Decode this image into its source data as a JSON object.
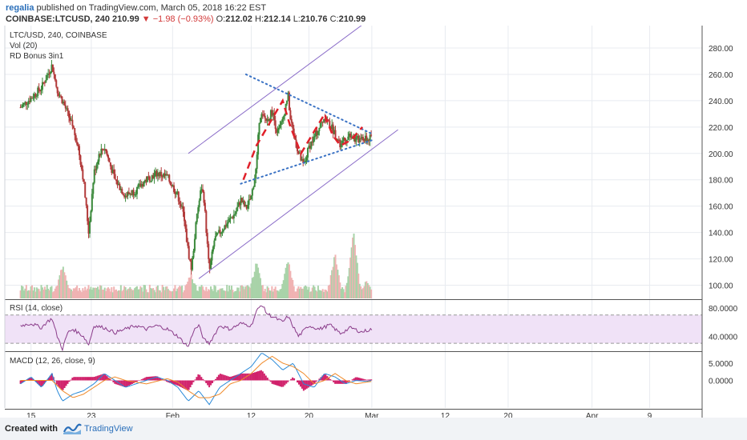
{
  "header": {
    "author": "regalia",
    "published": "published on TradingView.com, March 05, 2018 16:22 EST",
    "symbol": "COINBASE:LTCUSD, 240",
    "last": "210.99",
    "change": "−1.98 (−0.93%)",
    "o_label": "O:",
    "o_value": "212.02",
    "h_label": "H:",
    "h_value": "212.14",
    "l_label": "L:",
    "l_value": "210.76",
    "c_label": "C:",
    "c_value": "210.99"
  },
  "footer": {
    "created": "Created with",
    "brand": "TradingView"
  },
  "colors": {
    "up": "#3c8a3c",
    "down": "#b23a3a",
    "vol_up": "#a9d3a9",
    "vol_down": "#f0b3b3",
    "channel": "#8a6cc8",
    "triangle": "#3a72c4",
    "zigzag": "#e0202a",
    "rsi": "#8a3c8a",
    "rsi_band": "#f0e2f7",
    "macd_line": "#2a8ad8",
    "macd_signal": "#f08a2a",
    "macd_hist": "#d0206a"
  },
  "chart_data": {
    "type": "candlestick",
    "price_pane": {
      "legend": [
        "LTC/USD, 240, COINBASE",
        "Vol (20)",
        "RD Bonus 3in1"
      ],
      "yticks": [
        "280.00",
        "260.00",
        "240.00",
        "220.00",
        "200.00",
        "180.00",
        "160.00",
        "140.00",
        "120.00",
        "100.00"
      ],
      "ytick_values": [
        280,
        260,
        240,
        220,
        200,
        180,
        160,
        140,
        120,
        100
      ],
      "ylim": [
        90,
        297
      ],
      "anchors": [
        {
          "t": 0,
          "p": 235
        },
        {
          "t": 2,
          "p": 242
        },
        {
          "t": 4,
          "p": 250
        },
        {
          "t": 6,
          "p": 267
        },
        {
          "t": 7,
          "p": 248
        },
        {
          "t": 8,
          "p": 240
        },
        {
          "t": 10,
          "p": 220
        },
        {
          "t": 11,
          "p": 205
        },
        {
          "t": 12,
          "p": 180
        },
        {
          "t": 13,
          "p": 140
        },
        {
          "t": 14,
          "p": 185
        },
        {
          "t": 15,
          "p": 200
        },
        {
          "t": 16,
          "p": 205
        },
        {
          "t": 18,
          "p": 180
        },
        {
          "t": 20,
          "p": 168
        },
        {
          "t": 22,
          "p": 172
        },
        {
          "t": 24,
          "p": 180
        },
        {
          "t": 26,
          "p": 185
        },
        {
          "t": 28,
          "p": 182
        },
        {
          "t": 29,
          "p": 175
        },
        {
          "t": 30,
          "p": 168
        },
        {
          "t": 31,
          "p": 155
        },
        {
          "t": 32,
          "p": 125
        },
        {
          "t": 32.6,
          "p": 112
        },
        {
          "t": 33.5,
          "p": 148
        },
        {
          "t": 34.5,
          "p": 175
        },
        {
          "t": 35,
          "p": 165
        },
        {
          "t": 35.6,
          "p": 132
        },
        {
          "t": 36,
          "p": 110
        },
        {
          "t": 37,
          "p": 135
        },
        {
          "t": 39,
          "p": 145
        },
        {
          "t": 41,
          "p": 155
        },
        {
          "t": 42,
          "p": 165
        },
        {
          "t": 43,
          "p": 158
        },
        {
          "t": 44,
          "p": 167
        },
        {
          "t": 45,
          "p": 190
        },
        {
          "t": 45.6,
          "p": 230
        },
        {
          "t": 47,
          "p": 225
        },
        {
          "t": 48,
          "p": 232
        },
        {
          "t": 49,
          "p": 215
        },
        {
          "t": 50,
          "p": 225
        },
        {
          "t": 51,
          "p": 245
        },
        {
          "t": 51.5,
          "p": 225
        },
        {
          "t": 53,
          "p": 200
        },
        {
          "t": 54,
          "p": 190
        },
        {
          "t": 55,
          "p": 205
        },
        {
          "t": 56,
          "p": 212
        },
        {
          "t": 58,
          "p": 228
        },
        {
          "t": 59,
          "p": 222
        },
        {
          "t": 60,
          "p": 215
        },
        {
          "t": 61,
          "p": 205
        },
        {
          "t": 62,
          "p": 212
        },
        {
          "t": 63,
          "p": 215
        },
        {
          "t": 64,
          "p": 210
        },
        {
          "t": 65,
          "p": 212
        },
        {
          "t": 66,
          "p": 210
        },
        {
          "t": 67,
          "p": 212
        }
      ],
      "volume": {
        "ylim": [
          0,
          100
        ],
        "peaks": [
          {
            "t": 8,
            "v": 40
          },
          {
            "t": 32.5,
            "v": 30
          },
          {
            "t": 45,
            "v": 45
          },
          {
            "t": 51,
            "v": 48
          },
          {
            "t": 60,
            "v": 55
          },
          {
            "t": 63.5,
            "v": 85
          },
          {
            "t": 66,
            "v": 20
          }
        ]
      },
      "channel_upper": [
        {
          "t": 32,
          "p": 200
        },
        {
          "t": 66,
          "p": 300
        }
      ],
      "channel_lower": [
        {
          "t": 34,
          "p": 105
        },
        {
          "t": 72,
          "p": 218
        }
      ],
      "triangle_upper": [
        {
          "t": 43,
          "p": 260
        },
        {
          "t": 67,
          "p": 215
        }
      ],
      "triangle_lower": [
        {
          "t": 42,
          "p": 177
        },
        {
          "t": 67,
          "p": 210
        }
      ],
      "zigzag": [
        {
          "t": 42.5,
          "p": 180
        },
        {
          "t": 45,
          "p": 206
        },
        {
          "t": 50,
          "p": 240
        },
        {
          "t": 51.5,
          "p": 220
        },
        {
          "t": 53.5,
          "p": 200
        },
        {
          "t": 58,
          "p": 230
        },
        {
          "t": 59.5,
          "p": 214
        },
        {
          "t": 61,
          "p": 206
        },
        {
          "t": 63,
          "p": 210
        },
        {
          "t": 65.2,
          "p": 220
        }
      ]
    },
    "rsi_pane": {
      "legend": "RSI (14, close)",
      "yticks": [
        "80.0000",
        "40.0000"
      ],
      "ytick_values": [
        80,
        40
      ],
      "ylim": [
        20,
        90
      ],
      "band": [
        30,
        70
      ],
      "series": [
        {
          "t": 0,
          "v": 55
        },
        {
          "t": 2,
          "v": 58
        },
        {
          "t": 4,
          "v": 52
        },
        {
          "t": 5,
          "v": 60
        },
        {
          "t": 6,
          "v": 65
        },
        {
          "t": 7,
          "v": 40
        },
        {
          "t": 8,
          "v": 22
        },
        {
          "t": 9,
          "v": 45
        },
        {
          "t": 10,
          "v": 50
        },
        {
          "t": 12,
          "v": 40
        },
        {
          "t": 13,
          "v": 28
        },
        {
          "t": 14,
          "v": 55
        },
        {
          "t": 16,
          "v": 52
        },
        {
          "t": 18,
          "v": 45
        },
        {
          "t": 20,
          "v": 50
        },
        {
          "t": 22,
          "v": 55
        },
        {
          "t": 24,
          "v": 50
        },
        {
          "t": 26,
          "v": 55
        },
        {
          "t": 28,
          "v": 50
        },
        {
          "t": 30,
          "v": 40
        },
        {
          "t": 31,
          "v": 32
        },
        {
          "t": 32,
          "v": 25
        },
        {
          "t": 33,
          "v": 48
        },
        {
          "t": 34,
          "v": 55
        },
        {
          "t": 35,
          "v": 35
        },
        {
          "t": 36,
          "v": 30
        },
        {
          "t": 38,
          "v": 55
        },
        {
          "t": 40,
          "v": 50
        },
        {
          "t": 42,
          "v": 58
        },
        {
          "t": 44,
          "v": 55
        },
        {
          "t": 45,
          "v": 75
        },
        {
          "t": 46,
          "v": 85
        },
        {
          "t": 47,
          "v": 72
        },
        {
          "t": 48,
          "v": 68
        },
        {
          "t": 50,
          "v": 60
        },
        {
          "t": 51,
          "v": 68
        },
        {
          "t": 53,
          "v": 40
        },
        {
          "t": 55,
          "v": 55
        },
        {
          "t": 57,
          "v": 50
        },
        {
          "t": 59,
          "v": 56
        },
        {
          "t": 61,
          "v": 44
        },
        {
          "t": 63,
          "v": 52
        },
        {
          "t": 65,
          "v": 46
        },
        {
          "t": 67,
          "v": 50
        }
      ]
    },
    "macd_pane": {
      "legend": "MACD (12, 26, close, 9)",
      "yticks": [
        "5.0000",
        "0.0000"
      ],
      "ytick_values": [
        5,
        0
      ],
      "ylim": [
        -8,
        8
      ],
      "macd": [
        {
          "t": 0,
          "v": -1
        },
        {
          "t": 2,
          "v": 1
        },
        {
          "t": 4,
          "v": -2
        },
        {
          "t": 6,
          "v": 2
        },
        {
          "t": 7,
          "v": -3
        },
        {
          "t": 8,
          "v": -6
        },
        {
          "t": 10,
          "v": -4
        },
        {
          "t": 12,
          "v": -3
        },
        {
          "t": 14,
          "v": -1
        },
        {
          "t": 16,
          "v": 2
        },
        {
          "t": 18,
          "v": 0
        },
        {
          "t": 20,
          "v": -2
        },
        {
          "t": 22,
          "v": -1
        },
        {
          "t": 24,
          "v": 0
        },
        {
          "t": 26,
          "v": 1
        },
        {
          "t": 28,
          "v": 0
        },
        {
          "t": 30,
          "v": -2
        },
        {
          "t": 32,
          "v": -6
        },
        {
          "t": 34,
          "v": -3
        },
        {
          "t": 36,
          "v": -7
        },
        {
          "t": 38,
          "v": -2
        },
        {
          "t": 40,
          "v": 0
        },
        {
          "t": 42,
          "v": 2
        },
        {
          "t": 44,
          "v": 4
        },
        {
          "t": 46,
          "v": 8
        },
        {
          "t": 48,
          "v": 6
        },
        {
          "t": 50,
          "v": 3
        },
        {
          "t": 52,
          "v": 5
        },
        {
          "t": 54,
          "v": -1
        },
        {
          "t": 56,
          "v": -2
        },
        {
          "t": 58,
          "v": 2
        },
        {
          "t": 60,
          "v": 1
        },
        {
          "t": 62,
          "v": -1
        },
        {
          "t": 64,
          "v": 0
        },
        {
          "t": 66,
          "v": -0.3
        },
        {
          "t": 67,
          "v": 0
        }
      ],
      "signal": [
        {
          "t": 0,
          "v": 0
        },
        {
          "t": 3,
          "v": 0
        },
        {
          "t": 6,
          "v": 0
        },
        {
          "t": 8,
          "v": -3
        },
        {
          "t": 10,
          "v": -5
        },
        {
          "t": 12,
          "v": -4
        },
        {
          "t": 14,
          "v": -2
        },
        {
          "t": 16,
          "v": 0
        },
        {
          "t": 18,
          "v": 1
        },
        {
          "t": 20,
          "v": 0
        },
        {
          "t": 24,
          "v": -1
        },
        {
          "t": 28,
          "v": 0.5
        },
        {
          "t": 30,
          "v": -0.5
        },
        {
          "t": 32,
          "v": -3
        },
        {
          "t": 34,
          "v": -5
        },
        {
          "t": 36,
          "v": -5
        },
        {
          "t": 38,
          "v": -4
        },
        {
          "t": 40,
          "v": -1
        },
        {
          "t": 42,
          "v": 0
        },
        {
          "t": 44,
          "v": 2
        },
        {
          "t": 46,
          "v": 5
        },
        {
          "t": 48,
          "v": 7
        },
        {
          "t": 50,
          "v": 5
        },
        {
          "t": 52,
          "v": 4
        },
        {
          "t": 54,
          "v": 2
        },
        {
          "t": 56,
          "v": -1
        },
        {
          "t": 58,
          "v": 0
        },
        {
          "t": 60,
          "v": 2
        },
        {
          "t": 62,
          "v": 0
        },
        {
          "t": 64,
          "v": -1
        },
        {
          "t": 66,
          "v": -0.5
        },
        {
          "t": 67,
          "v": -0.3
        }
      ]
    },
    "x_axis": {
      "tick_labels": [
        "15",
        "23",
        "Feb",
        "12",
        "20",
        "Mar",
        "12",
        "20",
        "Apr",
        "9"
      ],
      "tick_t": [
        2,
        13.5,
        29,
        44,
        55,
        67,
        81,
        93,
        109,
        120
      ],
      "xlim": [
        -3,
        130
      ]
    }
  }
}
